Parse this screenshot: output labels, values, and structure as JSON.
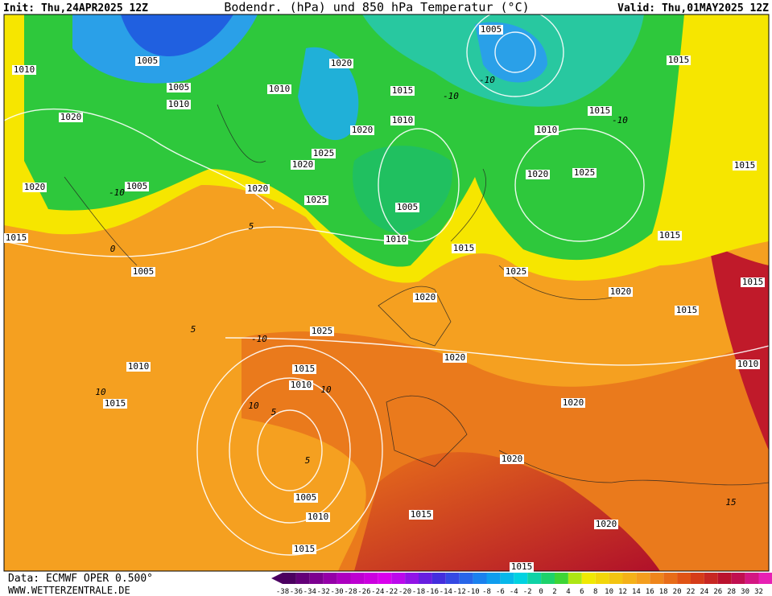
{
  "header": {
    "init": "Init: Thu,24APR2025 12Z",
    "title": "Bodendr. (hPa) und 850 hPa Temperatur (°C)",
    "valid": "Valid: Thu,01MAY2025 12Z"
  },
  "isobar_labels": [
    "1010",
    "1005",
    "1005",
    "1010",
    "1020",
    "1020",
    "1005",
    "1015",
    "1005",
    "1010",
    "1015",
    "1010",
    "1020",
    "1015",
    "1010",
    "1020",
    "1025",
    "1020",
    "1020",
    "1025",
    "1005",
    "1010",
    "1005",
    "1015",
    "1015",
    "1010",
    "1020",
    "1025",
    "1015",
    "1015",
    "1015",
    "1025",
    "1020",
    "1020",
    "1015",
    "1015",
    "1025",
    "1020",
    "1010",
    "1015",
    "1010",
    "1020",
    "1020",
    "1005",
    "1010",
    "1015",
    "1020",
    "1015",
    "1015"
  ],
  "isotherm_labels": [
    "-10",
    "-10",
    "-10",
    "-10",
    "0",
    "5",
    "5",
    "-10",
    "10",
    "5",
    "10",
    "10",
    "15",
    "5"
  ],
  "footer": {
    "source": "Data: ECMWF OPER 0.500°",
    "website": "WWW.WETTERZENTRALE.DE"
  },
  "color_scale": {
    "labels": [
      -38,
      -36,
      -34,
      -32,
      -30,
      -28,
      -26,
      -24,
      -22,
      -20,
      -18,
      -16,
      -14,
      -12,
      -10,
      -8,
      -6,
      -4,
      -2,
      0,
      2,
      4,
      6,
      8,
      10,
      12,
      14,
      16,
      18,
      20,
      22,
      24,
      26,
      28,
      30,
      32
    ]
  }
}
